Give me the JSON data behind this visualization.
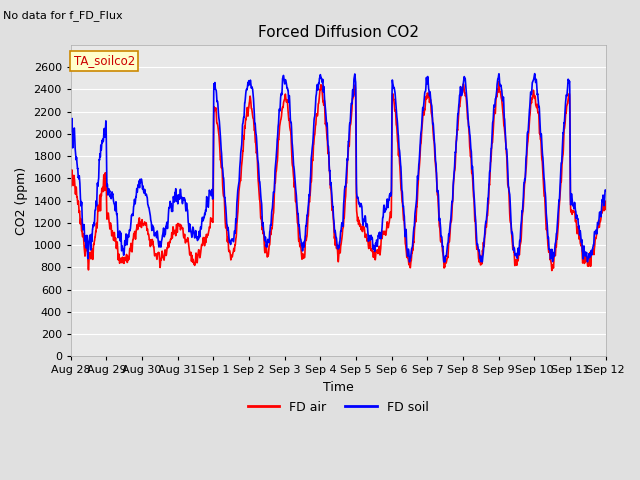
{
  "title": "Forced Diffusion CO2",
  "xlabel": "Time",
  "ylabel": "CO2 (ppm)",
  "no_data_text": "No data for f_FD_Flux",
  "annotation_text": "TA_soilco2",
  "annotation_color": "#cc0000",
  "annotation_bg": "#ffffcc",
  "ylim": [
    0,
    2800
  ],
  "yticks": [
    0,
    200,
    400,
    600,
    800,
    1000,
    1200,
    1400,
    1600,
    1800,
    2000,
    2200,
    2400,
    2600
  ],
  "xtick_labels": [
    "Aug 28",
    "Aug 29",
    "Aug 30",
    "Aug 31",
    "Sep 1",
    "Sep 2",
    "Sep 3",
    "Sep 4",
    "Sep 5",
    "Sep 6",
    "Sep 7",
    "Sep 8",
    "Sep 9",
    "Sep 10",
    "Sep 11",
    "Sep 12"
  ],
  "line_red_label": "FD air",
  "line_blue_label": "FD soil",
  "red_color": "#ff0000",
  "blue_color": "#0000ff",
  "fig_bg": "#e0e0e0",
  "plot_bg": "#e8e8e8",
  "grid_color": "#ffffff",
  "linewidth": 1.2,
  "figsize": [
    6.4,
    4.8
  ],
  "dpi": 100
}
